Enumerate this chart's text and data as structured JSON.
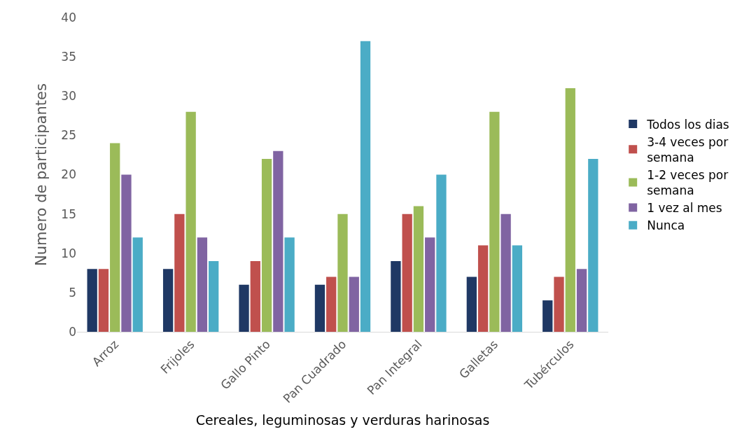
{
  "chart_data": {
    "type": "bar",
    "xlabel": "Cereales, leguminosas y verduras harinosas",
    "ylabel": "Numero de participantes",
    "categories": [
      "Arroz",
      "Frijoles",
      "Gallo Pinto",
      "Pan Cuadrado",
      "Pan Integral",
      "Galletas",
      "Tubérculos"
    ],
    "series": [
      {
        "name": "Todos los dias",
        "color": "#1f3864",
        "values": [
          8,
          8,
          6,
          6,
          9,
          7,
          4
        ]
      },
      {
        "name": "3-4 veces por semana",
        "color": "#c0504d",
        "values": [
          8,
          15,
          9,
          7,
          15,
          11,
          7
        ]
      },
      {
        "name": "1-2 veces por semana",
        "color": "#9bbb59",
        "values": [
          24,
          28,
          22,
          15,
          16,
          28,
          31
        ]
      },
      {
        "name": "1 vez al mes",
        "color": "#8064a2",
        "values": [
          20,
          12,
          23,
          7,
          12,
          15,
          8
        ]
      },
      {
        "name": "Nunca",
        "color": "#4bacc6",
        "values": [
          12,
          9,
          12,
          37,
          20,
          11,
          22
        ]
      }
    ],
    "ylim": [
      0,
      40
    ],
    "yticks": [
      0,
      5,
      10,
      15,
      20,
      25,
      30,
      35,
      40
    ],
    "grid": false,
    "legend": "right"
  }
}
